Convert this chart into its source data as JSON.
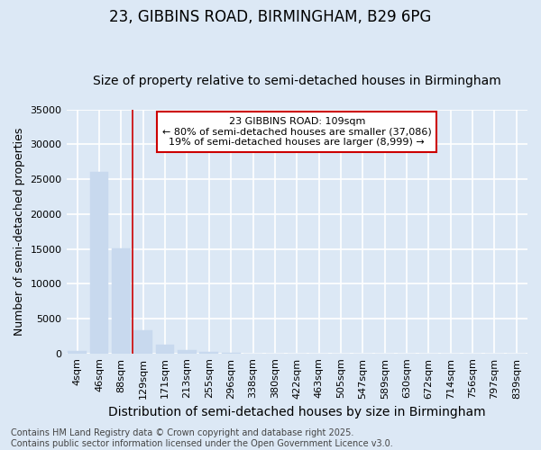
{
  "title1": "23, GIBBINS ROAD, BIRMINGHAM, B29 6PG",
  "title2": "Size of property relative to semi-detached houses in Birmingham",
  "xlabel": "Distribution of semi-detached houses by size in Birmingham",
  "ylabel": "Number of semi-detached properties",
  "categories": [
    "4sqm",
    "46sqm",
    "88sqm",
    "129sqm",
    "171sqm",
    "213sqm",
    "255sqm",
    "296sqm",
    "338sqm",
    "380sqm",
    "422sqm",
    "463sqm",
    "505sqm",
    "547sqm",
    "589sqm",
    "630sqm",
    "672sqm",
    "714sqm",
    "756sqm",
    "797sqm",
    "839sqm"
  ],
  "values": [
    400,
    26100,
    15100,
    3300,
    1200,
    480,
    170,
    50,
    10,
    3,
    1,
    0,
    0,
    0,
    0,
    0,
    0,
    0,
    0,
    0,
    0
  ],
  "bar_color": "#c8d9ee",
  "bar_edgecolor": "#c8d9ee",
  "vline_x_idx": 2,
  "vline_color": "#cc0000",
  "annotation_text": "23 GIBBINS ROAD: 109sqm\n← 80% of semi-detached houses are smaller (37,086)\n19% of semi-detached houses are larger (8,999) →",
  "annotation_box_color": "white",
  "annotation_box_edgecolor": "#cc0000",
  "ylim": [
    0,
    35000
  ],
  "yticks": [
    0,
    5000,
    10000,
    15000,
    20000,
    25000,
    30000,
    35000
  ],
  "ytick_labels": [
    "0",
    "5000",
    "10000",
    "15000",
    "20000",
    "25000",
    "30000",
    "35000"
  ],
  "fig_background_color": "#dce8f5",
  "plot_background_color": "#dce8f5",
  "grid_color": "white",
  "footer1": "Contains HM Land Registry data © Crown copyright and database right 2025.",
  "footer2": "Contains public sector information licensed under the Open Government Licence v3.0.",
  "title1_fontsize": 12,
  "title2_fontsize": 10,
  "xlabel_fontsize": 10,
  "ylabel_fontsize": 9,
  "tick_fontsize": 8,
  "annotation_fontsize": 8,
  "footer_fontsize": 7
}
